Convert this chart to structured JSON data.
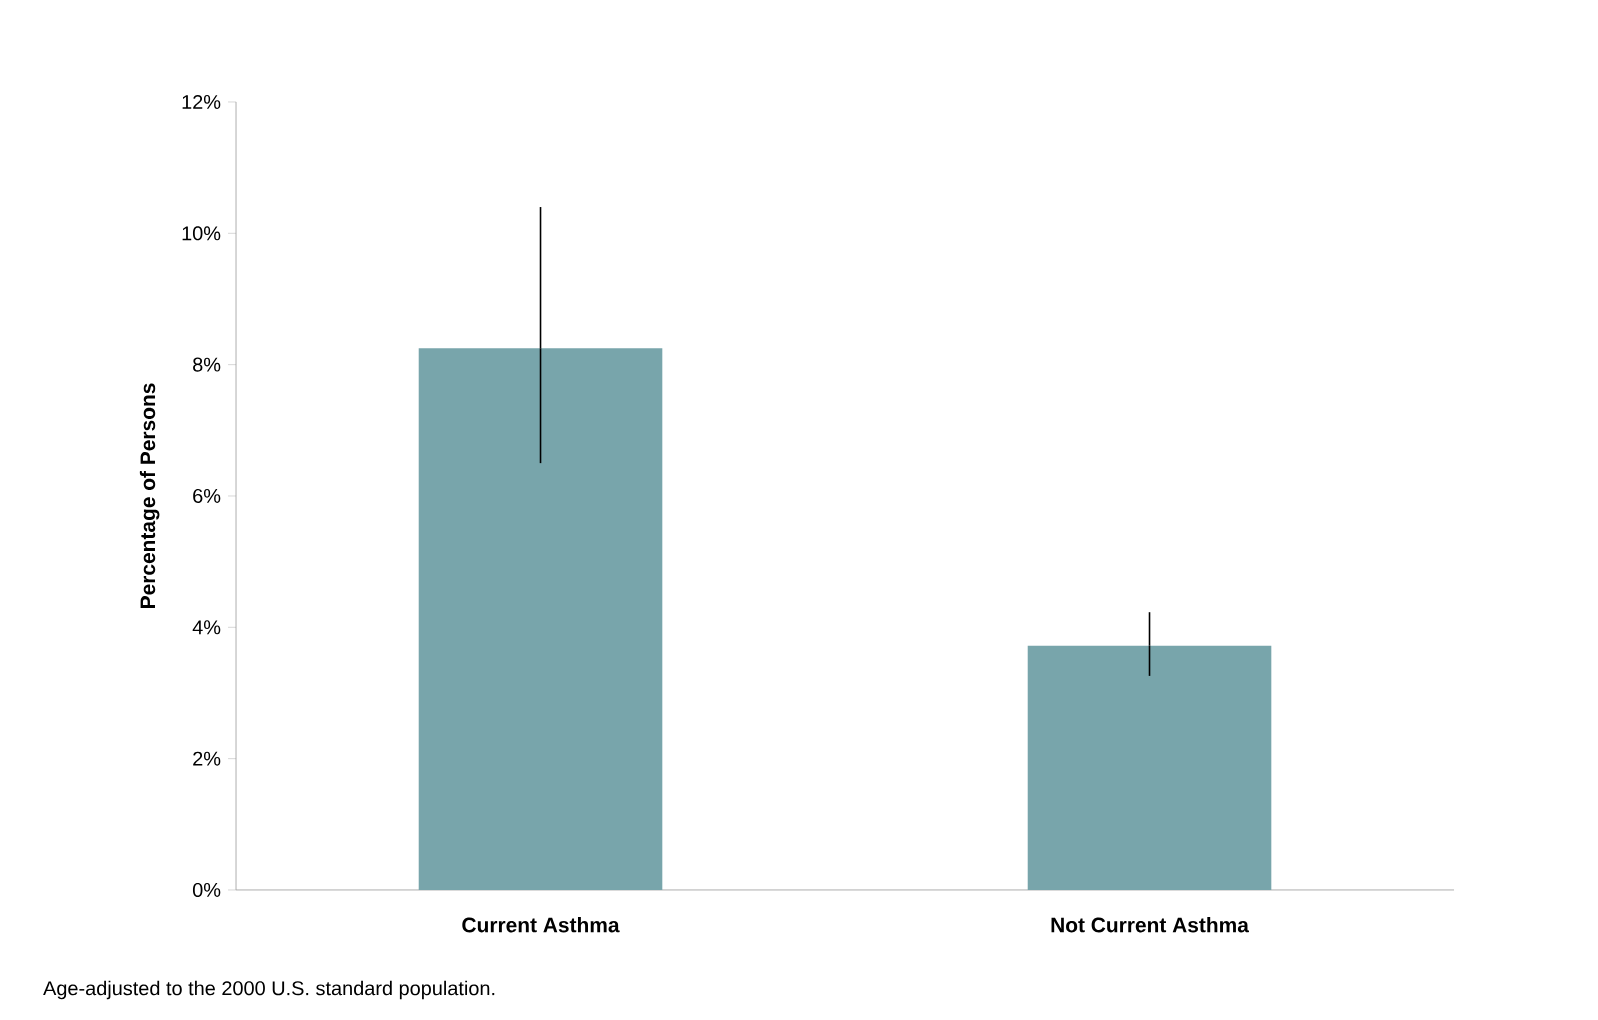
{
  "chart_data": {
    "type": "bar",
    "ylabel": "Percentage of Persons",
    "categories": [
      "Current Asthma",
      "Not Current Asthma"
    ],
    "values": [
      8.25,
      3.72
    ],
    "color": "#78a5ab",
    "errors": [
      [
        6.5,
        10.4
      ],
      [
        3.26,
        4.23
      ]
    ],
    "ylim": [
      0,
      12
    ],
    "yticks": [
      {
        "value": 0,
        "label": "0%"
      },
      {
        "value": 2,
        "label": "2%"
      },
      {
        "value": 4,
        "label": "4%"
      },
      {
        "value": 6,
        "label": "6%"
      },
      {
        "value": 8,
        "label": "8%"
      },
      {
        "value": 10,
        "label": "10%"
      },
      {
        "value": 12,
        "label": "12%"
      }
    ],
    "grid": false,
    "legend": false,
    "annotations": [
      "Age-adjusted to the 2000 U.S. standard population."
    ]
  }
}
